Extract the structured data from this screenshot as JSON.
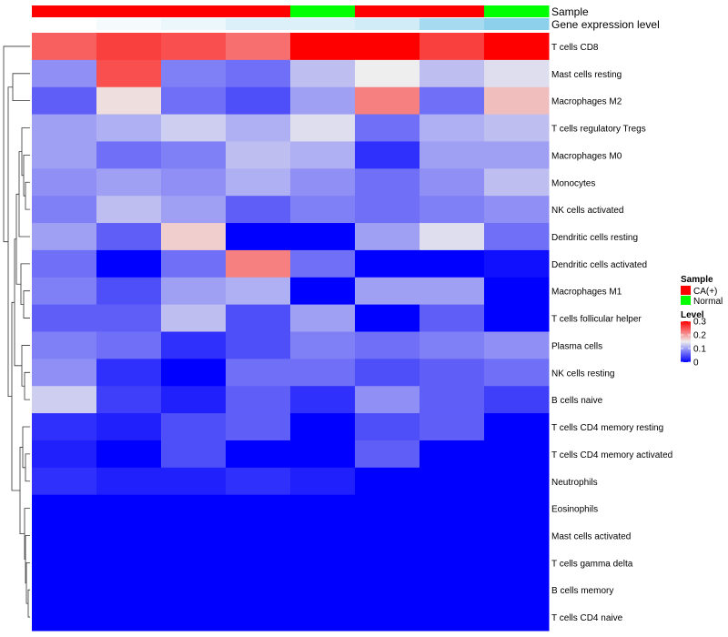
{
  "chart_data": {
    "type": "heatmap",
    "title": "",
    "annotation_rows": [
      "Sample",
      "Gene expression level"
    ],
    "samples": [
      {
        "group": "CA(+)",
        "expression_level": 0.0
      },
      {
        "group": "CA(+)",
        "expression_level": 0.08
      },
      {
        "group": "CA(+)",
        "expression_level": 0.16
      },
      {
        "group": "CA(+)",
        "expression_level": 0.3
      },
      {
        "group": "Normal",
        "expression_level": 0.3
      },
      {
        "group": "CA(+)",
        "expression_level": 0.38
      },
      {
        "group": "CA(+)",
        "expression_level": 0.75
      },
      {
        "group": "Normal",
        "expression_level": 0.95
      }
    ],
    "rows": [
      "T cells CD8",
      "Mast cells resting",
      "Macrophages M2",
      "T cells regulatory  Tregs",
      "Macrophages M0",
      "Monocytes",
      "NK cells activated",
      "Dendritic cells resting",
      "Dendritic cells activated",
      "Macrophages M1",
      "T cells follicular helper",
      "Plasma cells",
      "NK cells resting",
      "B cells naive",
      "T cells CD4 memory resting",
      "T cells CD4 memory activated",
      "Neutrophils",
      "Eosinophils",
      "Mast cells activated",
      "T cells gamma delta",
      "B cells memory",
      "T cells CD4 naive"
    ],
    "values": [
      [
        0.24,
        0.26,
        0.25,
        0.23,
        0.3,
        0.3,
        0.26,
        0.3
      ],
      [
        0.09,
        0.25,
        0.08,
        0.07,
        0.12,
        0.15,
        0.12,
        0.14
      ],
      [
        0.06,
        0.16,
        0.07,
        0.05,
        0.1,
        0.22,
        0.07,
        0.18
      ],
      [
        0.1,
        0.11,
        0.13,
        0.11,
        0.14,
        0.07,
        0.11,
        0.12
      ],
      [
        0.1,
        0.07,
        0.08,
        0.12,
        0.11,
        0.03,
        0.1,
        0.1
      ],
      [
        0.09,
        0.1,
        0.09,
        0.11,
        0.09,
        0.07,
        0.09,
        0.12
      ],
      [
        0.08,
        0.12,
        0.1,
        0.06,
        0.08,
        0.07,
        0.08,
        0.09
      ],
      [
        0.1,
        0.06,
        0.17,
        0.0,
        0.0,
        0.1,
        0.14,
        0.07
      ],
      [
        0.07,
        0.0,
        0.07,
        0.22,
        0.07,
        0.0,
        0.0,
        0.01
      ],
      [
        0.08,
        0.05,
        0.1,
        0.11,
        0.0,
        0.1,
        0.1,
        0.0
      ],
      [
        0.06,
        0.06,
        0.12,
        0.05,
        0.1,
        0.0,
        0.06,
        0.0
      ],
      [
        0.08,
        0.07,
        0.03,
        0.05,
        0.08,
        0.07,
        0.08,
        0.09
      ],
      [
        0.09,
        0.03,
        0.0,
        0.07,
        0.07,
        0.05,
        0.06,
        0.07
      ],
      [
        0.13,
        0.04,
        0.02,
        0.06,
        0.03,
        0.09,
        0.06,
        0.04
      ],
      [
        0.03,
        0.02,
        0.05,
        0.06,
        0.0,
        0.05,
        0.06,
        0.0
      ],
      [
        0.02,
        0.0,
        0.05,
        0.0,
        0.0,
        0.06,
        0.0,
        0.0
      ],
      [
        0.03,
        0.02,
        0.02,
        0.03,
        0.02,
        0.0,
        0.0,
        0.0
      ],
      [
        0.0,
        0.0,
        0.0,
        0.0,
        0.0,
        0.0,
        0.0,
        0.0
      ],
      [
        0.0,
        0.0,
        0.0,
        0.0,
        0.0,
        0.0,
        0.0,
        0.0
      ],
      [
        0.0,
        0.0,
        0.0,
        0.0,
        0.0,
        0.0,
        0.0,
        0.0
      ],
      [
        0.0,
        0.0,
        0.0,
        0.0,
        0.0,
        0.0,
        0.0,
        0.0
      ],
      [
        0.0,
        0.0,
        0.0,
        0.0,
        0.0,
        0.0,
        0.0,
        0.0
      ]
    ],
    "color_scale": {
      "min": 0,
      "mid": 0.15,
      "max": 0.3,
      "low_color": "#0000ff",
      "mid_color": "#eeeeee",
      "high_color": "#ff0000"
    },
    "annotation_colors": {
      "Sample": {
        "CA(+)": "#ff0000",
        "Normal": "#00ff00"
      },
      "Gene expression level": {
        "low_color": "#ffffff",
        "high_color": "#87ceeb"
      }
    },
    "legend": {
      "sample_title": "Sample",
      "sample_entries": [
        "CA(+)",
        "Normal"
      ],
      "level_title": "Level",
      "level_ticks": [
        "0.3",
        "0.2",
        "0.1",
        "0"
      ],
      "level_tick_values": [
        0.3,
        0.2,
        0.1,
        0
      ],
      "placement": "right"
    },
    "dendrogram": "rows"
  }
}
